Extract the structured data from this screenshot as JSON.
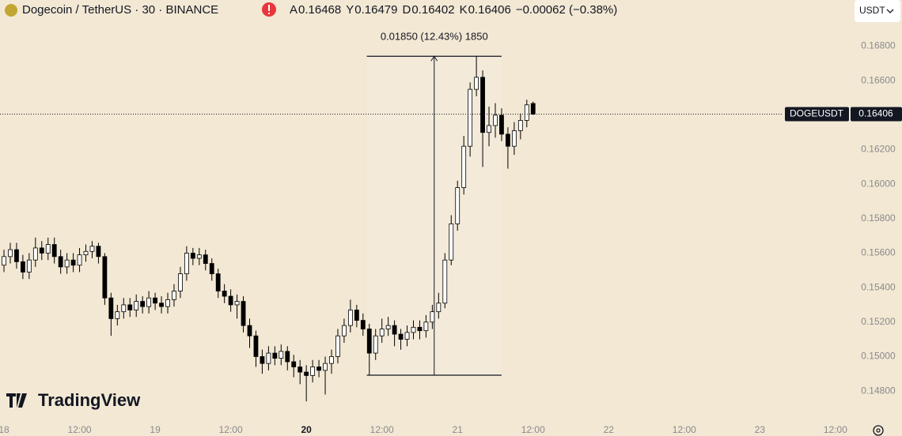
{
  "chart_data": {
    "type": "candlestick",
    "title": "Dogecoin / TetherUS · 30 · BINANCE",
    "ohlc_labels": [
      "A",
      "Y",
      "D",
      "K"
    ],
    "change": "−0.00062 (−0.38%)",
    "last_price_label": "DOGEUSDT",
    "x": [
      0,
      1,
      2,
      3,
      4,
      5,
      6,
      7,
      8,
      9,
      10,
      11,
      12,
      13,
      14,
      15,
      16,
      17,
      18,
      19,
      20,
      21,
      22,
      23,
      24,
      25,
      26,
      27,
      28,
      29,
      30,
      31,
      32,
      33,
      34,
      35,
      36,
      37,
      38,
      39,
      40,
      41,
      42,
      43,
      44,
      45,
      46,
      47,
      48,
      49,
      50,
      51,
      52,
      53,
      54,
      55,
      56,
      57,
      58,
      59,
      60,
      61,
      62,
      63,
      64,
      65,
      66,
      67,
      68,
      69,
      70,
      71,
      72,
      73,
      74,
      75,
      76,
      77,
      78,
      79,
      80,
      81,
      82,
      83,
      84
    ],
    "open": [
      0.1553,
      0.1558,
      0.1562,
      0.1555,
      0.1549,
      0.1556,
      0.1563,
      0.156,
      0.1565,
      0.1558,
      0.1552,
      0.1556,
      0.1553,
      0.1559,
      0.1561,
      0.1564,
      0.1558,
      0.1534,
      0.1522,
      0.1526,
      0.153,
      0.1527,
      0.1532,
      0.1529,
      0.1534,
      0.1531,
      0.1529,
      0.1533,
      0.1538,
      0.1548,
      0.156,
      0.1557,
      0.1559,
      0.1554,
      0.1548,
      0.1538,
      0.1535,
      0.153,
      0.1532,
      0.1518,
      0.1512,
      0.15,
      0.1496,
      0.1502,
      0.1499,
      0.1503,
      0.1497,
      0.1494,
      0.1491,
      0.1489,
      0.1494,
      0.1492,
      0.1496,
      0.15,
      0.1512,
      0.1518,
      0.1527,
      0.1521,
      0.1516,
      0.1502,
      0.1512,
      0.1516,
      0.1518,
      0.1513,
      0.151,
      0.1514,
      0.1517,
      0.1515,
      0.152,
      0.1526,
      0.1531,
      0.1556,
      0.1577,
      0.1598,
      0.1622,
      0.1655,
      0.1662,
      0.163,
      0.1634,
      0.164,
      0.1629,
      0.1622,
      0.1631,
      0.1637,
      0.16468
    ],
    "high": [
      0.1562,
      0.1566,
      0.1566,
      0.1559,
      0.156,
      0.1569,
      0.1567,
      0.1569,
      0.1569,
      0.1562,
      0.156,
      0.156,
      0.1563,
      0.1565,
      0.1567,
      0.1566,
      0.156,
      0.1537,
      0.153,
      0.1534,
      0.1534,
      0.1536,
      0.1535,
      0.1538,
      0.1537,
      0.1535,
      0.1537,
      0.1542,
      0.1552,
      0.1564,
      0.1563,
      0.1563,
      0.1562,
      0.1557,
      0.1551,
      0.1542,
      0.1539,
      0.1536,
      0.1535,
      0.1522,
      0.1515,
      0.1504,
      0.1506,
      0.1506,
      0.1507,
      0.1506,
      0.1501,
      0.1498,
      0.1495,
      0.1498,
      0.1498,
      0.15,
      0.1504,
      0.1516,
      0.1522,
      0.1533,
      0.153,
      0.1525,
      0.1519,
      0.1516,
      0.1522,
      0.1523,
      0.1521,
      0.1516,
      0.1518,
      0.1521,
      0.1521,
      0.1524,
      0.153,
      0.1537,
      0.156,
      0.1582,
      0.1602,
      0.1628,
      0.1659,
      0.16742,
      0.1666,
      0.1645,
      0.1647,
      0.1644,
      0.1633,
      0.1636,
      0.1641,
      0.1649,
      0.16479
    ],
    "low": [
      0.1549,
      0.1554,
      0.1551,
      0.1545,
      0.1545,
      0.1552,
      0.1556,
      0.1556,
      0.1554,
      0.1548,
      0.1548,
      0.1549,
      0.1549,
      0.1555,
      0.1557,
      0.1554,
      0.153,
      0.1512,
      0.1518,
      0.1522,
      0.1523,
      0.1523,
      0.1525,
      0.1525,
      0.1527,
      0.1525,
      0.1525,
      0.1529,
      0.1534,
      0.1544,
      0.1553,
      0.1553,
      0.155,
      0.1544,
      0.1534,
      0.1531,
      0.1526,
      0.1522,
      0.1514,
      0.1505,
      0.1494,
      0.149,
      0.1492,
      0.1495,
      0.1495,
      0.1492,
      0.1488,
      0.1484,
      0.1474,
      0.1485,
      0.1488,
      0.1478,
      0.149,
      0.1496,
      0.1508,
      0.1514,
      0.1517,
      0.1512,
      0.14892,
      0.1498,
      0.1508,
      0.1512,
      0.1506,
      0.1504,
      0.1506,
      0.151,
      0.151,
      0.1511,
      0.1516,
      0.1522,
      0.1528,
      0.1553,
      0.1573,
      0.1594,
      0.1616,
      0.1651,
      0.161,
      0.1622,
      0.1627,
      0.1625,
      0.1609,
      0.1617,
      0.1626,
      0.1633,
      0.16402
    ],
    "close": [
      0.1558,
      0.1562,
      0.1555,
      0.1549,
      0.1556,
      0.1563,
      0.156,
      0.1565,
      0.1558,
      0.1552,
      0.1556,
      0.1553,
      0.1559,
      0.1561,
      0.1564,
      0.1558,
      0.1534,
      0.1522,
      0.1526,
      0.153,
      0.1527,
      0.1532,
      0.1529,
      0.1534,
      0.1531,
      0.1529,
      0.1533,
      0.1538,
      0.1548,
      0.156,
      0.1557,
      0.1559,
      0.1554,
      0.1548,
      0.1538,
      0.1535,
      0.153,
      0.1532,
      0.1518,
      0.1512,
      0.15,
      0.1496,
      0.1502,
      0.1499,
      0.1503,
      0.1497,
      0.1494,
      0.1491,
      0.1489,
      0.1494,
      0.1492,
      0.1496,
      0.15,
      0.1512,
      0.1518,
      0.1527,
      0.1521,
      0.1516,
      0.1502,
      0.1512,
      0.1516,
      0.1518,
      0.1513,
      0.151,
      0.1514,
      0.1517,
      0.1515,
      0.152,
      0.1526,
      0.1531,
      0.1556,
      0.1577,
      0.1598,
      0.1622,
      0.1655,
      0.1662,
      0.163,
      0.1634,
      0.164,
      0.1629,
      0.1622,
      0.1631,
      0.1637,
      0.1646,
      0.16406
    ],
    "up_color": "#ffffff",
    "down_color": "#000000",
    "xlim": [
      -0.63,
      134.4
    ],
    "xticks": [
      {
        "value": 0,
        "label": "18"
      },
      {
        "value": 12,
        "label": "12:00"
      },
      {
        "value": 24,
        "label": "19"
      },
      {
        "value": 36,
        "label": "12:00"
      },
      {
        "value": 48,
        "label": "20"
      },
      {
        "value": 60,
        "label": "12:00"
      },
      {
        "value": 72,
        "label": "21"
      },
      {
        "value": 84,
        "label": "12:00"
      },
      {
        "value": 96,
        "label": "22"
      },
      {
        "value": 108,
        "label": "12:00"
      },
      {
        "value": 120,
        "label": "23"
      },
      {
        "value": 132,
        "label": "12:00"
      }
    ],
    "ylim": [
      0.1464,
      0.1694
    ],
    "yticks": [
      {
        "value": 0.148,
        "label": "0.14800"
      },
      {
        "value": 0.15,
        "label": "0.15000"
      },
      {
        "value": 0.152,
        "label": "0.15200"
      },
      {
        "value": 0.154,
        "label": "0.15400"
      },
      {
        "value": 0.156,
        "label": "0.15600"
      },
      {
        "value": 0.158,
        "label": "0.15800"
      },
      {
        "value": 0.16,
        "label": "0.16000"
      },
      {
        "value": 0.162,
        "label": "0.16200"
      },
      {
        "value": 0.164,
        "label": "0.16400"
      },
      {
        "value": 0.166,
        "label": "0.16600"
      },
      {
        "value": 0.168,
        "label": "0.16800"
      }
    ],
    "measure": {
      "x": [
        57.6,
        79
      ],
      "from": 0.14892,
      "to": 0.16742,
      "label": "0.01850 (12.43%) 1850"
    }
  },
  "currency": "USDT",
  "brand": "TradingView"
}
